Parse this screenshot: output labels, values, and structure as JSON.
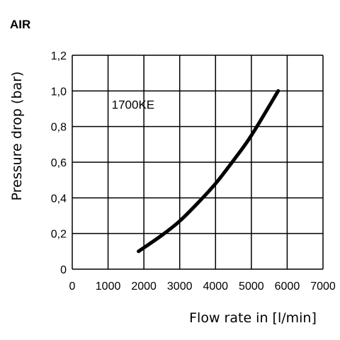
{
  "chart_data": {
    "type": "line",
    "title": "AIR",
    "xlabel": "Flow rate in [l/min]",
    "ylabel": "Pressure drop (bar)",
    "xlim": [
      0,
      7000
    ],
    "ylim": [
      0,
      1.2
    ],
    "x_ticks": [
      "0",
      "1000",
      "2000",
      "3000",
      "4000",
      "5000",
      "6000",
      "7000"
    ],
    "y_ticks": [
      "0",
      "0,2",
      "0,4",
      "0,6",
      "0,8",
      "1,0",
      "1,2"
    ],
    "grid": true,
    "series": [
      {
        "name": "1700KE",
        "x": [
          1850,
          2500,
          3000,
          3500,
          4000,
          4500,
          5000,
          5750
        ],
        "y": [
          0.1,
          0.19,
          0.27,
          0.37,
          0.48,
          0.61,
          0.75,
          1.0
        ]
      }
    ]
  }
}
